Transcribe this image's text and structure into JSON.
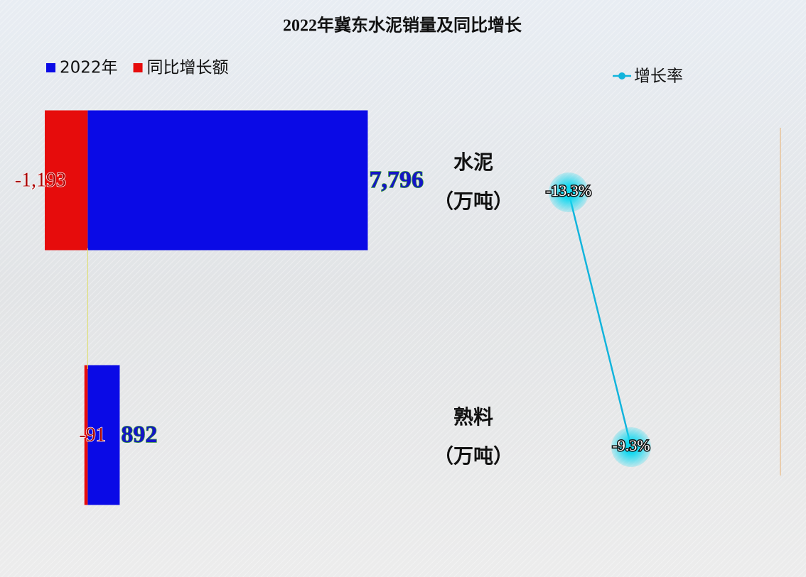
{
  "chart_data": {
    "type": "bar",
    "orientation": "horizontal",
    "title": "2022年冀东水泥销量及同比增长",
    "categories": [
      "水泥",
      "熟料"
    ],
    "unit": "（万吨）",
    "xlim": [
      -2400,
      19300
    ],
    "x2lim": [
      -49.6,
      0.3
    ],
    "series": [
      {
        "name": "2022年",
        "color": "#0a0ae6",
        "values": [
          7796,
          892
        ],
        "value_labels": [
          "7,796",
          "892"
        ]
      },
      {
        "name": "同比增长额",
        "color": "#e60c0c",
        "values": [
          -1193,
          -91
        ],
        "value_labels": [
          "-1,193",
          "-91"
        ]
      },
      {
        "name": "增长率",
        "type": "line",
        "axis": "x2",
        "color": "#12b4dc",
        "values": [
          -13.3,
          -9.3
        ],
        "value_labels": [
          "-13.3%",
          "-9.3%"
        ]
      }
    ]
  }
}
